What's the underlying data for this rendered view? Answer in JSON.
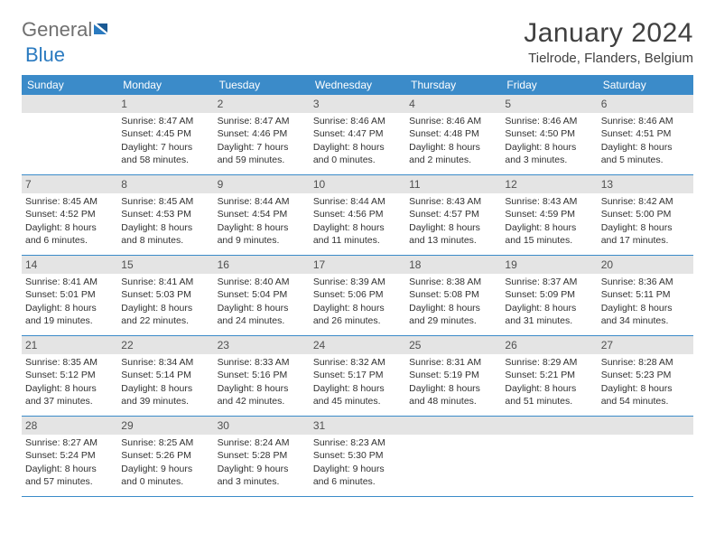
{
  "logo": {
    "text1": "General",
    "text2": "Blue"
  },
  "title": "January 2024",
  "location": "Tielrode, Flanders, Belgium",
  "colors": {
    "header_bg": "#3b8bc9",
    "daynum_bg": "#e4e4e4",
    "text": "#303030",
    "title_text": "#404040",
    "logo_gray": "#707070",
    "logo_blue": "#2a7ac0",
    "border": "#3b8bc9"
  },
  "weekdays": [
    "Sunday",
    "Monday",
    "Tuesday",
    "Wednesday",
    "Thursday",
    "Friday",
    "Saturday"
  ],
  "weeks": [
    [
      {
        "n": "",
        "sr": "",
        "ss": "",
        "dl": ""
      },
      {
        "n": "1",
        "sr": "Sunrise: 8:47 AM",
        "ss": "Sunset: 4:45 PM",
        "dl": "Daylight: 7 hours and 58 minutes."
      },
      {
        "n": "2",
        "sr": "Sunrise: 8:47 AM",
        "ss": "Sunset: 4:46 PM",
        "dl": "Daylight: 7 hours and 59 minutes."
      },
      {
        "n": "3",
        "sr": "Sunrise: 8:46 AM",
        "ss": "Sunset: 4:47 PM",
        "dl": "Daylight: 8 hours and 0 minutes."
      },
      {
        "n": "4",
        "sr": "Sunrise: 8:46 AM",
        "ss": "Sunset: 4:48 PM",
        "dl": "Daylight: 8 hours and 2 minutes."
      },
      {
        "n": "5",
        "sr": "Sunrise: 8:46 AM",
        "ss": "Sunset: 4:50 PM",
        "dl": "Daylight: 8 hours and 3 minutes."
      },
      {
        "n": "6",
        "sr": "Sunrise: 8:46 AM",
        "ss": "Sunset: 4:51 PM",
        "dl": "Daylight: 8 hours and 5 minutes."
      }
    ],
    [
      {
        "n": "7",
        "sr": "Sunrise: 8:45 AM",
        "ss": "Sunset: 4:52 PM",
        "dl": "Daylight: 8 hours and 6 minutes."
      },
      {
        "n": "8",
        "sr": "Sunrise: 8:45 AM",
        "ss": "Sunset: 4:53 PM",
        "dl": "Daylight: 8 hours and 8 minutes."
      },
      {
        "n": "9",
        "sr": "Sunrise: 8:44 AM",
        "ss": "Sunset: 4:54 PM",
        "dl": "Daylight: 8 hours and 9 minutes."
      },
      {
        "n": "10",
        "sr": "Sunrise: 8:44 AM",
        "ss": "Sunset: 4:56 PM",
        "dl": "Daylight: 8 hours and 11 minutes."
      },
      {
        "n": "11",
        "sr": "Sunrise: 8:43 AM",
        "ss": "Sunset: 4:57 PM",
        "dl": "Daylight: 8 hours and 13 minutes."
      },
      {
        "n": "12",
        "sr": "Sunrise: 8:43 AM",
        "ss": "Sunset: 4:59 PM",
        "dl": "Daylight: 8 hours and 15 minutes."
      },
      {
        "n": "13",
        "sr": "Sunrise: 8:42 AM",
        "ss": "Sunset: 5:00 PM",
        "dl": "Daylight: 8 hours and 17 minutes."
      }
    ],
    [
      {
        "n": "14",
        "sr": "Sunrise: 8:41 AM",
        "ss": "Sunset: 5:01 PM",
        "dl": "Daylight: 8 hours and 19 minutes."
      },
      {
        "n": "15",
        "sr": "Sunrise: 8:41 AM",
        "ss": "Sunset: 5:03 PM",
        "dl": "Daylight: 8 hours and 22 minutes."
      },
      {
        "n": "16",
        "sr": "Sunrise: 8:40 AM",
        "ss": "Sunset: 5:04 PM",
        "dl": "Daylight: 8 hours and 24 minutes."
      },
      {
        "n": "17",
        "sr": "Sunrise: 8:39 AM",
        "ss": "Sunset: 5:06 PM",
        "dl": "Daylight: 8 hours and 26 minutes."
      },
      {
        "n": "18",
        "sr": "Sunrise: 8:38 AM",
        "ss": "Sunset: 5:08 PM",
        "dl": "Daylight: 8 hours and 29 minutes."
      },
      {
        "n": "19",
        "sr": "Sunrise: 8:37 AM",
        "ss": "Sunset: 5:09 PM",
        "dl": "Daylight: 8 hours and 31 minutes."
      },
      {
        "n": "20",
        "sr": "Sunrise: 8:36 AM",
        "ss": "Sunset: 5:11 PM",
        "dl": "Daylight: 8 hours and 34 minutes."
      }
    ],
    [
      {
        "n": "21",
        "sr": "Sunrise: 8:35 AM",
        "ss": "Sunset: 5:12 PM",
        "dl": "Daylight: 8 hours and 37 minutes."
      },
      {
        "n": "22",
        "sr": "Sunrise: 8:34 AM",
        "ss": "Sunset: 5:14 PM",
        "dl": "Daylight: 8 hours and 39 minutes."
      },
      {
        "n": "23",
        "sr": "Sunrise: 8:33 AM",
        "ss": "Sunset: 5:16 PM",
        "dl": "Daylight: 8 hours and 42 minutes."
      },
      {
        "n": "24",
        "sr": "Sunrise: 8:32 AM",
        "ss": "Sunset: 5:17 PM",
        "dl": "Daylight: 8 hours and 45 minutes."
      },
      {
        "n": "25",
        "sr": "Sunrise: 8:31 AM",
        "ss": "Sunset: 5:19 PM",
        "dl": "Daylight: 8 hours and 48 minutes."
      },
      {
        "n": "26",
        "sr": "Sunrise: 8:29 AM",
        "ss": "Sunset: 5:21 PM",
        "dl": "Daylight: 8 hours and 51 minutes."
      },
      {
        "n": "27",
        "sr": "Sunrise: 8:28 AM",
        "ss": "Sunset: 5:23 PM",
        "dl": "Daylight: 8 hours and 54 minutes."
      }
    ],
    [
      {
        "n": "28",
        "sr": "Sunrise: 8:27 AM",
        "ss": "Sunset: 5:24 PM",
        "dl": "Daylight: 8 hours and 57 minutes."
      },
      {
        "n": "29",
        "sr": "Sunrise: 8:25 AM",
        "ss": "Sunset: 5:26 PM",
        "dl": "Daylight: 9 hours and 0 minutes."
      },
      {
        "n": "30",
        "sr": "Sunrise: 8:24 AM",
        "ss": "Sunset: 5:28 PM",
        "dl": "Daylight: 9 hours and 3 minutes."
      },
      {
        "n": "31",
        "sr": "Sunrise: 8:23 AM",
        "ss": "Sunset: 5:30 PM",
        "dl": "Daylight: 9 hours and 6 minutes."
      },
      {
        "n": "",
        "sr": "",
        "ss": "",
        "dl": ""
      },
      {
        "n": "",
        "sr": "",
        "ss": "",
        "dl": ""
      },
      {
        "n": "",
        "sr": "",
        "ss": "",
        "dl": ""
      }
    ]
  ]
}
